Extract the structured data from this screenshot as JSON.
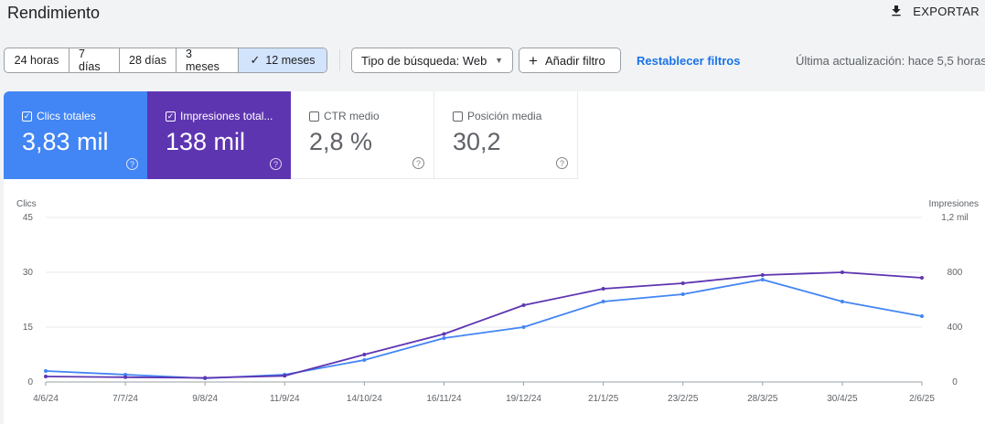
{
  "header": {
    "title": "Rendimiento",
    "export_label": "EXPORTAR"
  },
  "filters": {
    "date_ranges": [
      {
        "label": "24 horas",
        "active": false
      },
      {
        "label": "7 días",
        "active": false
      },
      {
        "label": "28 días",
        "active": false
      },
      {
        "label": "3 meses",
        "active": false
      },
      {
        "label": "12 meses",
        "active": true
      }
    ],
    "search_type_label": "Tipo de búsqueda: Web",
    "add_filter_label": "Añadir filtro",
    "reset_label": "Restablecer filtros",
    "last_update": "Última actualización: hace 5,5 horas"
  },
  "metrics": [
    {
      "label": "Clics totales",
      "value": "3,83 mil",
      "checked": true
    },
    {
      "label": "Impresiones total...",
      "value": "138 mil",
      "checked": true
    },
    {
      "label": "CTR medio",
      "value": "2,8 %",
      "checked": false
    },
    {
      "label": "Posición media",
      "value": "30,2",
      "checked": false
    }
  ],
  "colors": {
    "clicks": "#4285f4",
    "impressions": "#5e35b1",
    "accent": "#1a73e8"
  },
  "chart_data": {
    "type": "line",
    "left_axis_label": "Clics",
    "right_axis_label": "Impresiones",
    "left_ticks": [
      "0",
      "15",
      "30",
      "45"
    ],
    "right_ticks": [
      "0",
      "400",
      "800",
      "1,2 mil"
    ],
    "ylim_left": [
      0,
      45
    ],
    "ylim_right": [
      0,
      1200
    ],
    "x_tick_labels": [
      "4/6/24",
      "7/7/24",
      "9/8/24",
      "11/9/24",
      "14/10/24",
      "16/11/24",
      "19/12/24",
      "21/1/25",
      "23/2/25",
      "28/3/25",
      "30/4/25",
      "2/6/25"
    ],
    "grid": true,
    "series": [
      {
        "name": "Clics",
        "axis": "left",
        "x": [
          "4/6/24",
          "7/7/24",
          "9/8/24",
          "11/9/24",
          "14/10/24",
          "16/11/24",
          "19/12/24",
          "21/1/25",
          "23/2/25",
          "28/3/25",
          "30/4/25",
          "2/6/25"
        ],
        "values": [
          3,
          2,
          1,
          2,
          6,
          12,
          15,
          22,
          24,
          28,
          22,
          18
        ]
      },
      {
        "name": "Impresiones",
        "axis": "right",
        "x": [
          "4/6/24",
          "7/7/24",
          "9/8/24",
          "11/9/24",
          "14/10/24",
          "16/11/24",
          "19/12/24",
          "21/1/25",
          "23/2/25",
          "28/3/25",
          "30/4/25",
          "2/6/25"
        ],
        "values": [
          40,
          35,
          30,
          45,
          200,
          350,
          560,
          680,
          720,
          780,
          800,
          760
        ]
      }
    ]
  }
}
